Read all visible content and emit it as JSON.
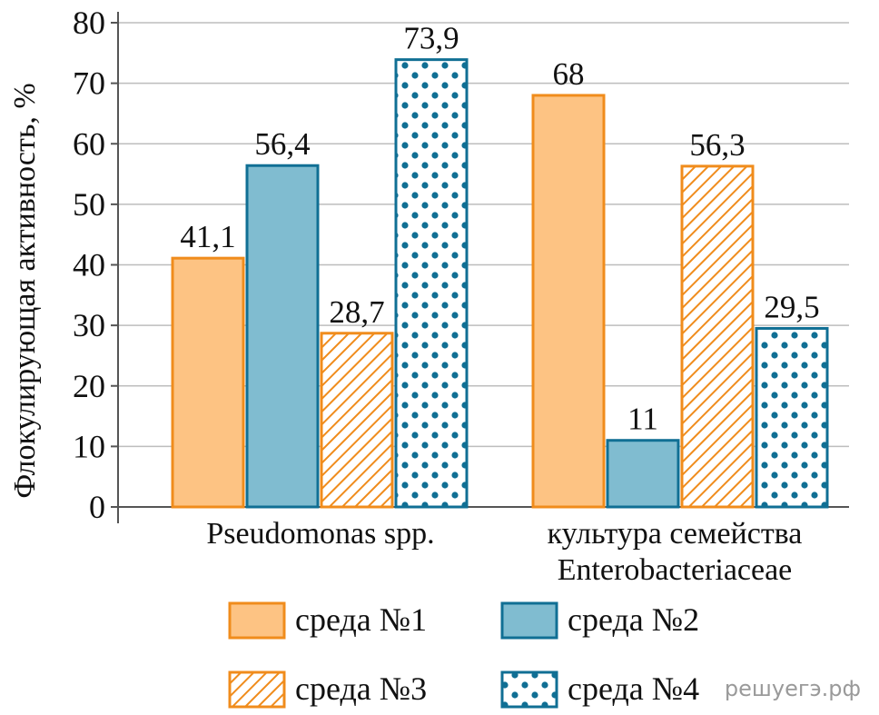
{
  "chart_data": {
    "type": "bar",
    "ylabel": "Флокулирующая активность, %",
    "xlabel": "",
    "ylim": [
      0,
      80
    ],
    "yticks": [
      "0",
      "10",
      "20",
      "30",
      "40",
      "50",
      "60",
      "70",
      "80"
    ],
    "grid": true,
    "legend_position": "bottom",
    "categories": [
      [
        "Pseudomonas spp."
      ],
      [
        "культура семейства",
        "Enterobacteriaceae"
      ]
    ],
    "series": [
      {
        "name": "среда №1",
        "values": [
          41.1,
          68
        ],
        "labels": [
          "41,1",
          "68"
        ],
        "fill": "solid",
        "color": "#fdc383",
        "stroke": "#f08c1c"
      },
      {
        "name": "среда №2",
        "values": [
          56.4,
          11
        ],
        "labels": [
          "56,4",
          "11"
        ],
        "fill": "solid",
        "color": "#80bcd0",
        "stroke": "#106f94"
      },
      {
        "name": "среда №3",
        "values": [
          28.7,
          56.3
        ],
        "labels": [
          "28,7",
          "56,3"
        ],
        "fill": "hatch",
        "color": "#ffffff",
        "stroke": "#f08c1c"
      },
      {
        "name": "среда №4",
        "values": [
          73.9,
          29.5
        ],
        "labels": [
          "73,9",
          "29,5"
        ],
        "fill": "dots",
        "color": "#ffffff",
        "stroke": "#106f94"
      }
    ]
  },
  "watermark": "решуегэ.рф"
}
